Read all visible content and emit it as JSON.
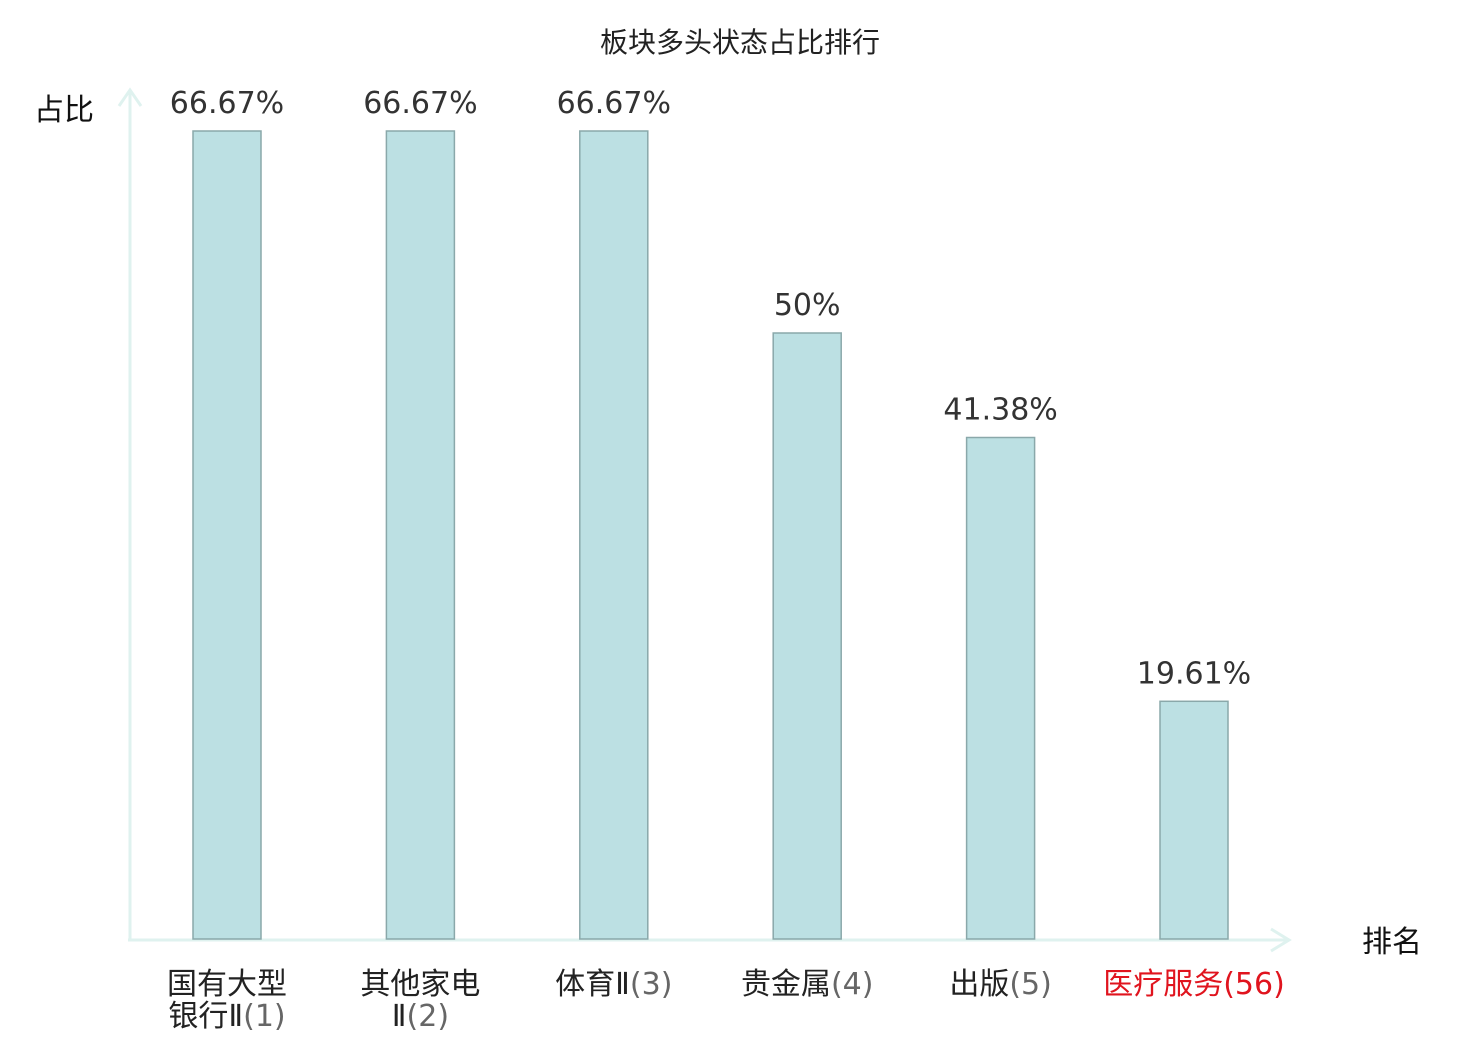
{
  "chart_data": {
    "type": "bar",
    "title": "板块多头状态占比排行",
    "ylabel": "占比",
    "xlabel": "排名",
    "categories": [
      {
        "name": "国有大型银行Ⅱ",
        "rank": "(1)",
        "lines": [
          "国有大型",
          "银行Ⅱ"
        ],
        "highlight": false
      },
      {
        "name": "其他家电Ⅱ",
        "rank": "(2)",
        "lines": [
          "其他家电",
          "Ⅱ"
        ],
        "highlight": false
      },
      {
        "name": "体育Ⅱ",
        "rank": "(3)",
        "lines": [
          "体育Ⅱ"
        ],
        "highlight": false
      },
      {
        "name": "贵金属",
        "rank": "(4)",
        "lines": [
          "贵金属"
        ],
        "highlight": false
      },
      {
        "name": "出版",
        "rank": "(5)",
        "lines": [
          "出版"
        ],
        "highlight": false
      },
      {
        "name": "医疗服务",
        "rank": "(56)",
        "lines": [
          "医疗服务"
        ],
        "highlight": true
      }
    ],
    "values": [
      66.67,
      66.67,
      66.67,
      50,
      41.38,
      19.61
    ],
    "value_labels": [
      "66.67%",
      "66.67%",
      "66.67%",
      "50%",
      "41.38%",
      "19.61%"
    ],
    "ylim": [
      0,
      66.67
    ],
    "grid": false,
    "colors": {
      "bar_fill": "#bce0e3",
      "bar_stroke": "#8aa8aa",
      "axis": "#dff2ef",
      "highlight": "#e0141e"
    }
  }
}
